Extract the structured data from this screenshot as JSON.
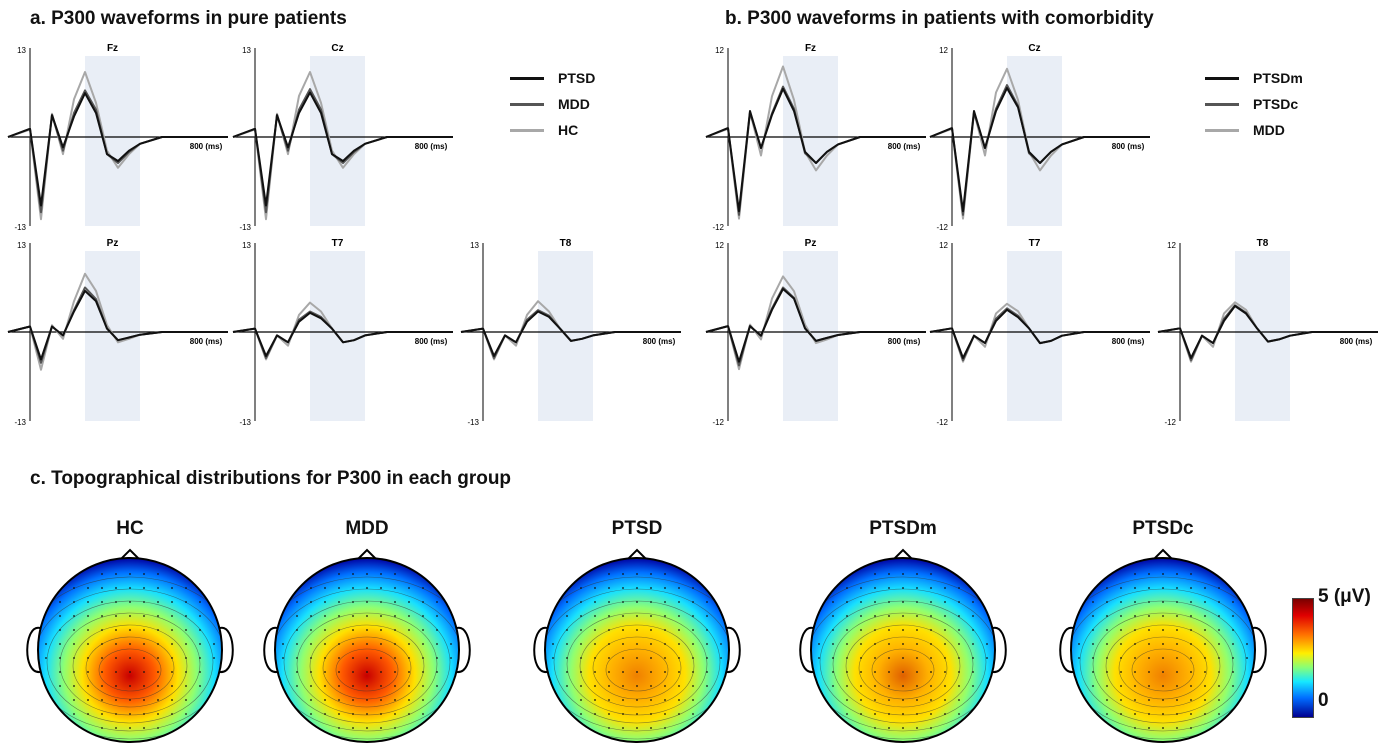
{
  "panel_a": {
    "title": "a. P300 waveforms in pure patients",
    "ymax_label": "13",
    "ymin_label": "-13",
    "xtick_label": "800 (ms)",
    "legend": [
      {
        "name": "PTSD",
        "color": "#111111"
      },
      {
        "name": "MDD",
        "color": "#555555"
      },
      {
        "name": "HC",
        "color": "#a8a8a8"
      }
    ]
  },
  "panel_b": {
    "title": "b. P300 waveforms in patients with comorbidity",
    "ymax_label": "12",
    "ymin_label": "-12",
    "xtick_label": "800 (ms)",
    "legend": [
      {
        "name": "PTSDm",
        "color": "#111111"
      },
      {
        "name": "PTSDc",
        "color": "#555555"
      },
      {
        "name": "MDD",
        "color": "#a8a8a8"
      }
    ]
  },
  "panel_c": {
    "title": "c. Topographical distributions for P300 in each group",
    "colorbar_max_label": "5 (μV)",
    "colorbar_min_label": "0",
    "maps": [
      {
        "group": "HC",
        "peak": 1.0
      },
      {
        "group": "MDD",
        "peak": 1.0
      },
      {
        "group": "PTSD",
        "peak": 0.74
      },
      {
        "group": "PTSDm",
        "peak": 0.78
      },
      {
        "group": "PTSDc",
        "peak": 0.7
      }
    ]
  },
  "chart_data": [
    {
      "type": "line",
      "panel": "a",
      "x": [
        -100,
        0,
        50,
        100,
        150,
        200,
        250,
        300,
        350,
        400,
        450,
        500,
        600,
        700,
        800,
        900
      ],
      "xlabel": "800 (ms)",
      "ylim": [
        -13,
        13
      ],
      "shaded_window": [
        250,
        500
      ],
      "electrodes": [
        {
          "name": "Fz",
          "series": [
            {
              "name": "PTSD",
              "values": [
                0,
                1.2,
                -10,
                3.2,
                -1.5,
                3,
                6.4,
                3.5,
                -2.5,
                -3.5,
                -2,
                -1,
                0,
                0,
                0,
                0
              ]
            },
            {
              "name": "MDD",
              "values": [
                0,
                1.2,
                -11,
                3.2,
                -2,
                3.5,
                6.8,
                4,
                -2.5,
                -3.8,
                -2.2,
                -1,
                0,
                0,
                0,
                0
              ]
            },
            {
              "name": "HC",
              "values": [
                0,
                1.1,
                -12,
                3.4,
                -2.5,
                5.5,
                9.5,
                5,
                -2,
                -4.5,
                -2.5,
                -1,
                0,
                0,
                0,
                0
              ]
            }
          ]
        },
        {
          "name": "Cz",
          "series": [
            {
              "name": "PTSD",
              "values": [
                0,
                1.2,
                -10,
                3.2,
                -1.5,
                3.5,
                6.5,
                3.5,
                -2.5,
                -3.5,
                -2,
                -1,
                0,
                0,
                0,
                0
              ]
            },
            {
              "name": "MDD",
              "values": [
                0,
                1.2,
                -11,
                3.2,
                -2,
                4,
                7,
                4,
                -2.5,
                -3.8,
                -2.2,
                -1,
                0,
                0,
                0,
                0
              ]
            },
            {
              "name": "HC",
              "values": [
                0,
                1.1,
                -12,
                3.4,
                -2.5,
                6,
                9.5,
                5,
                -2,
                -4.5,
                -2.5,
                -1,
                0,
                0,
                0,
                0
              ]
            }
          ]
        },
        {
          "name": "Pz",
          "series": [
            {
              "name": "PTSD",
              "values": [
                0,
                0.8,
                -4,
                0.8,
                -0.5,
                3,
                6,
                4.5,
                0.5,
                -1.2,
                -0.8,
                -0.4,
                0,
                0,
                0,
                0
              ]
            },
            {
              "name": "MDD",
              "values": [
                0,
                0.8,
                -4.5,
                0.8,
                -0.5,
                3.2,
                6.5,
                4.8,
                0.5,
                -1.2,
                -0.8,
                -0.4,
                0,
                0,
                0,
                0
              ]
            },
            {
              "name": "HC",
              "values": [
                0,
                0.8,
                -5.5,
                1,
                -1,
                4.5,
                8.5,
                6,
                1,
                -1.5,
                -1,
                -0.4,
                0,
                0,
                0,
                0
              ]
            }
          ]
        },
        {
          "name": "T7",
          "series": [
            {
              "name": "PTSD",
              "values": [
                0,
                0.5,
                -3.5,
                -0.5,
                -1.5,
                1.5,
                2.8,
                2,
                0.5,
                -1.5,
                -1.2,
                -0.5,
                0,
                0,
                0,
                0
              ]
            },
            {
              "name": "MDD",
              "values": [
                0,
                0.5,
                -3.8,
                -0.5,
                -1.5,
                1.8,
                3,
                2.2,
                0.5,
                -1.5,
                -1.2,
                -0.5,
                0,
                0,
                0,
                0
              ]
            },
            {
              "name": "HC",
              "values": [
                0,
                0.5,
                -4,
                -0.5,
                -2,
                2.5,
                4.3,
                3,
                0.5,
                -1.5,
                -1.2,
                -0.5,
                0,
                0,
                0,
                0
              ]
            }
          ]
        },
        {
          "name": "T8",
          "series": [
            {
              "name": "PTSD",
              "values": [
                0,
                0.5,
                -3.5,
                -0.5,
                -1.5,
                1.5,
                3,
                2.2,
                0.5,
                -1.3,
                -1,
                -0.5,
                0,
                0,
                0,
                0
              ]
            },
            {
              "name": "MDD",
              "values": [
                0,
                0.5,
                -3.8,
                -0.5,
                -1.5,
                1.8,
                3.2,
                2.4,
                0.5,
                -1.3,
                -1,
                -0.5,
                0,
                0,
                0,
                0
              ]
            },
            {
              "name": "HC",
              "values": [
                0,
                0.5,
                -4,
                -0.5,
                -2,
                2.5,
                4.5,
                3,
                0.5,
                -1.3,
                -1,
                -0.5,
                0,
                0,
                0,
                0
              ]
            }
          ]
        }
      ]
    },
    {
      "type": "line",
      "panel": "b",
      "x": [
        -100,
        0,
        50,
        100,
        150,
        200,
        250,
        300,
        350,
        400,
        450,
        500,
        600,
        700,
        800,
        900
      ],
      "xlabel": "800 (ms)",
      "ylim": [
        -12,
        12
      ],
      "shaded_window": [
        250,
        500
      ],
      "electrodes": [
        {
          "name": "Fz",
          "series": [
            {
              "name": "PTSDm",
              "values": [
                0,
                1.2,
                -10,
                3.5,
                -1.5,
                3,
                6.5,
                3.5,
                -2,
                -3.5,
                -2,
                -1,
                0,
                0,
                0,
                0
              ]
            },
            {
              "name": "PTSDc",
              "values": [
                0,
                1.2,
                -10.5,
                3.3,
                -1.5,
                3.2,
                6.8,
                3.8,
                -2.2,
                -3.5,
                -2,
                -1,
                0,
                0,
                0,
                0
              ]
            },
            {
              "name": "MDD",
              "values": [
                0,
                1.1,
                -11,
                3.4,
                -2.5,
                5.5,
                9.5,
                5,
                -2,
                -4.5,
                -2.5,
                -1,
                0,
                0,
                0,
                0
              ]
            }
          ]
        },
        {
          "name": "Cz",
          "series": [
            {
              "name": "PTSDm",
              "values": [
                0,
                1.2,
                -10,
                3.5,
                -1.5,
                3.5,
                6.6,
                4,
                -2,
                -3.5,
                -2,
                -1,
                0,
                0,
                0,
                0
              ]
            },
            {
              "name": "PTSDc",
              "values": [
                0,
                1.2,
                -10.5,
                3.3,
                -1.5,
                3.8,
                7,
                4.2,
                -2.2,
                -3.5,
                -2,
                -1,
                0,
                0,
                0,
                0
              ]
            },
            {
              "name": "MDD",
              "values": [
                0,
                1.1,
                -11,
                3.4,
                -2.5,
                6,
                9.2,
                5,
                -2,
                -4.5,
                -2.5,
                -1,
                0,
                0,
                0,
                0
              ]
            }
          ]
        },
        {
          "name": "Pz",
          "series": [
            {
              "name": "PTSDm",
              "values": [
                0,
                0.8,
                -4,
                0.8,
                -0.5,
                3,
                5.8,
                4.5,
                0.5,
                -1.2,
                -0.8,
                -0.4,
                0,
                0,
                0,
                0
              ]
            },
            {
              "name": "PTSDc",
              "values": [
                0,
                0.8,
                -4.5,
                0.8,
                -0.5,
                3.2,
                6,
                4.6,
                0.5,
                -1.2,
                -0.8,
                -0.4,
                0,
                0,
                0,
                0
              ]
            },
            {
              "name": "MDD",
              "values": [
                0,
                0.8,
                -5,
                1,
                -1,
                4.5,
                7.5,
                5.5,
                1,
                -1.5,
                -1,
                -0.4,
                0,
                0,
                0,
                0
              ]
            }
          ]
        },
        {
          "name": "T7",
          "series": [
            {
              "name": "PTSDm",
              "values": [
                0,
                0.5,
                -3.5,
                -0.5,
                -1.5,
                1.5,
                3,
                2,
                0.5,
                -1.5,
                -1.2,
                -0.5,
                0,
                0,
                0,
                0
              ]
            },
            {
              "name": "PTSDc",
              "values": [
                0,
                0.5,
                -3.8,
                -0.5,
                -1.5,
                1.8,
                3.2,
                2.2,
                0.5,
                -1.5,
                -1.2,
                -0.5,
                0,
                0,
                0,
                0
              ]
            },
            {
              "name": "MDD",
              "values": [
                0,
                0.5,
                -4,
                -0.5,
                -2,
                2.5,
                3.8,
                2.8,
                0.5,
                -1.5,
                -1.2,
                -0.5,
                0,
                0,
                0,
                0
              ]
            }
          ]
        },
        {
          "name": "T8",
          "series": [
            {
              "name": "PTSDm",
              "values": [
                0,
                0.5,
                -3.5,
                -0.5,
                -1.5,
                1.5,
                3.5,
                2.5,
                0.5,
                -1.3,
                -1,
                -0.5,
                0,
                0,
                0,
                0
              ]
            },
            {
              "name": "PTSDc",
              "values": [
                0,
                0.5,
                -3.8,
                -0.5,
                -1.5,
                1.8,
                3.6,
                2.6,
                0.5,
                -1.3,
                -1,
                -0.5,
                0,
                0,
                0,
                0
              ]
            },
            {
              "name": "MDD",
              "values": [
                0,
                0.5,
                -4,
                -0.5,
                -2,
                2.5,
                4,
                3,
                0.5,
                -1.3,
                -1,
                -0.5,
                0,
                0,
                0,
                0
              ]
            }
          ]
        }
      ]
    }
  ]
}
